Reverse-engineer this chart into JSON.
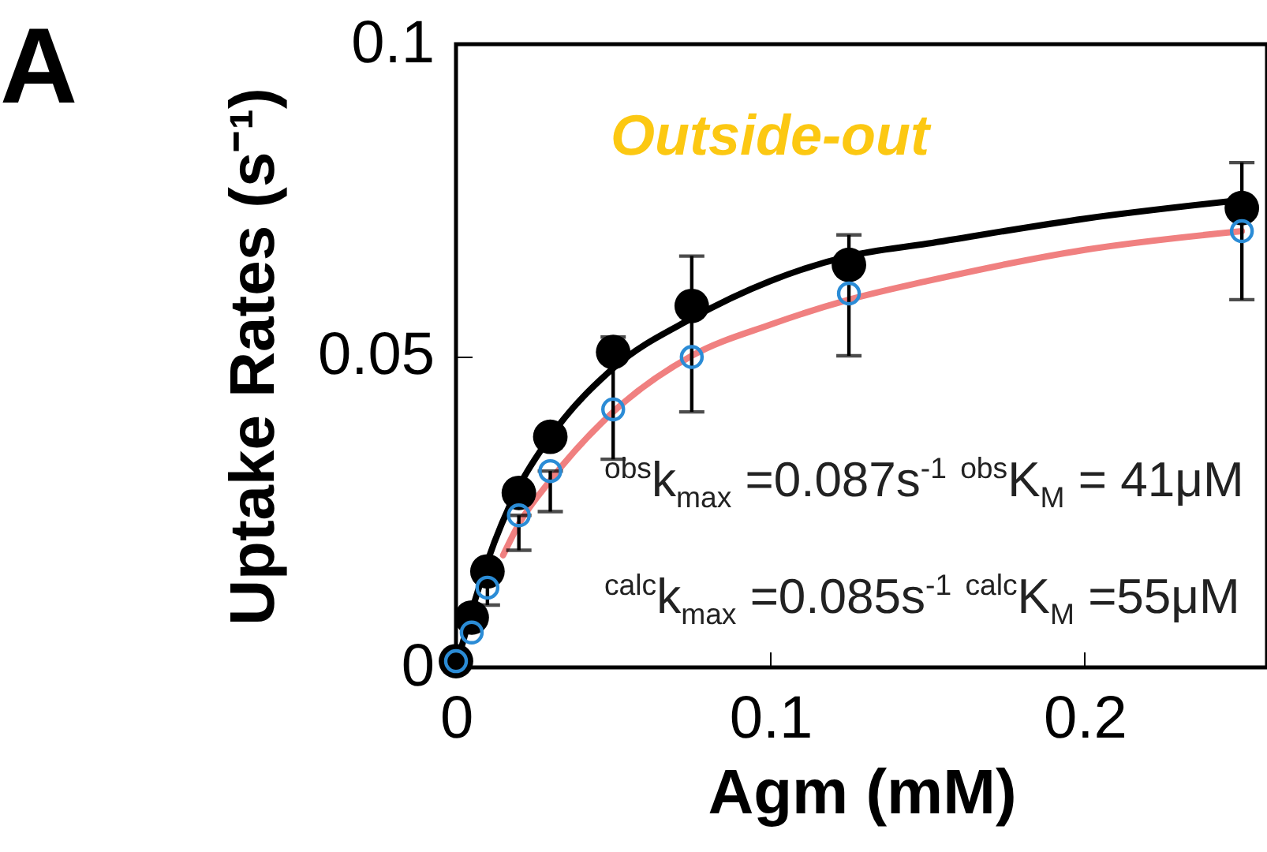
{
  "chart_data": {
    "type": "scatter",
    "xlabel": "Agm (mM)",
    "ylabel": "Uptake Rates (s⁻¹)",
    "xlim": [
      0,
      0.258
    ],
    "ylim": [
      0,
      0.1
    ],
    "xticks": [
      0,
      0.1,
      0.2
    ],
    "yticks": [
      0,
      0.05,
      0.1
    ],
    "marker": "circle",
    "series": [
      {
        "type": "line",
        "marker": "none",
        "color": "#f08080",
        "x": [
          0.015,
          0.02,
          0.03,
          0.05,
          0.075,
          0.1,
          0.125,
          0.15,
          0.2,
          0.25
        ],
        "values": [
          0.018,
          0.023,
          0.03,
          0.041,
          0.05,
          0.055,
          0.059,
          0.062,
          0.067,
          0.07
        ]
      },
      {
        "type": "line",
        "marker": "none",
        "color": "#000000",
        "x": [
          0,
          0.005,
          0.01,
          0.02,
          0.03,
          0.05,
          0.075,
          0.1,
          0.125,
          0.15,
          0.2,
          0.25
        ],
        "values": [
          0,
          0.009,
          0.017,
          0.029,
          0.037,
          0.048,
          0.056,
          0.062,
          0.066,
          0.068,
          0.072,
          0.075
        ]
      },
      {
        "color": "#000000",
        "x": [
          0,
          0.005,
          0.01,
          0.02,
          0.03,
          0.05,
          0.075,
          0.125,
          0.25
        ],
        "values": [
          0.001,
          0.008,
          0.0154,
          0.028,
          0.037,
          0.0506,
          0.058,
          0.0646,
          0.0737
        ]
      },
      {
        "color": "#2b8cd6",
        "x": [
          0,
          0.005,
          0.01,
          0.02,
          0.03,
          0.05,
          0.075,
          0.125,
          0.25
        ],
        "values": [
          0.001,
          0.0056,
          0.0128,
          0.0244,
          0.0315,
          0.0414,
          0.0498,
          0.06,
          0.07
        ],
        "errors": [
          null,
          null,
          [
            0.01,
            0.015
          ],
          [
            0.0188,
            0.0244
          ],
          [
            0.025,
            0.0315
          ],
          [
            0.0334,
            0.053
          ],
          [
            0.041,
            0.066
          ],
          [
            0.05,
            0.0694
          ],
          [
            0.059,
            0.081
          ]
        ]
      }
    ],
    "annotations": [
      "A",
      "Outside-out",
      "$^{obs}$k$_{max}$ =0.087s$^{-1}$ $^{obs}$K$_{M}$ = 41μM",
      "$^{calc}$k$_{max}$ =0.085s$^{-1}$ $^{calc}$K$_{M}$ =55μM"
    ]
  }
}
